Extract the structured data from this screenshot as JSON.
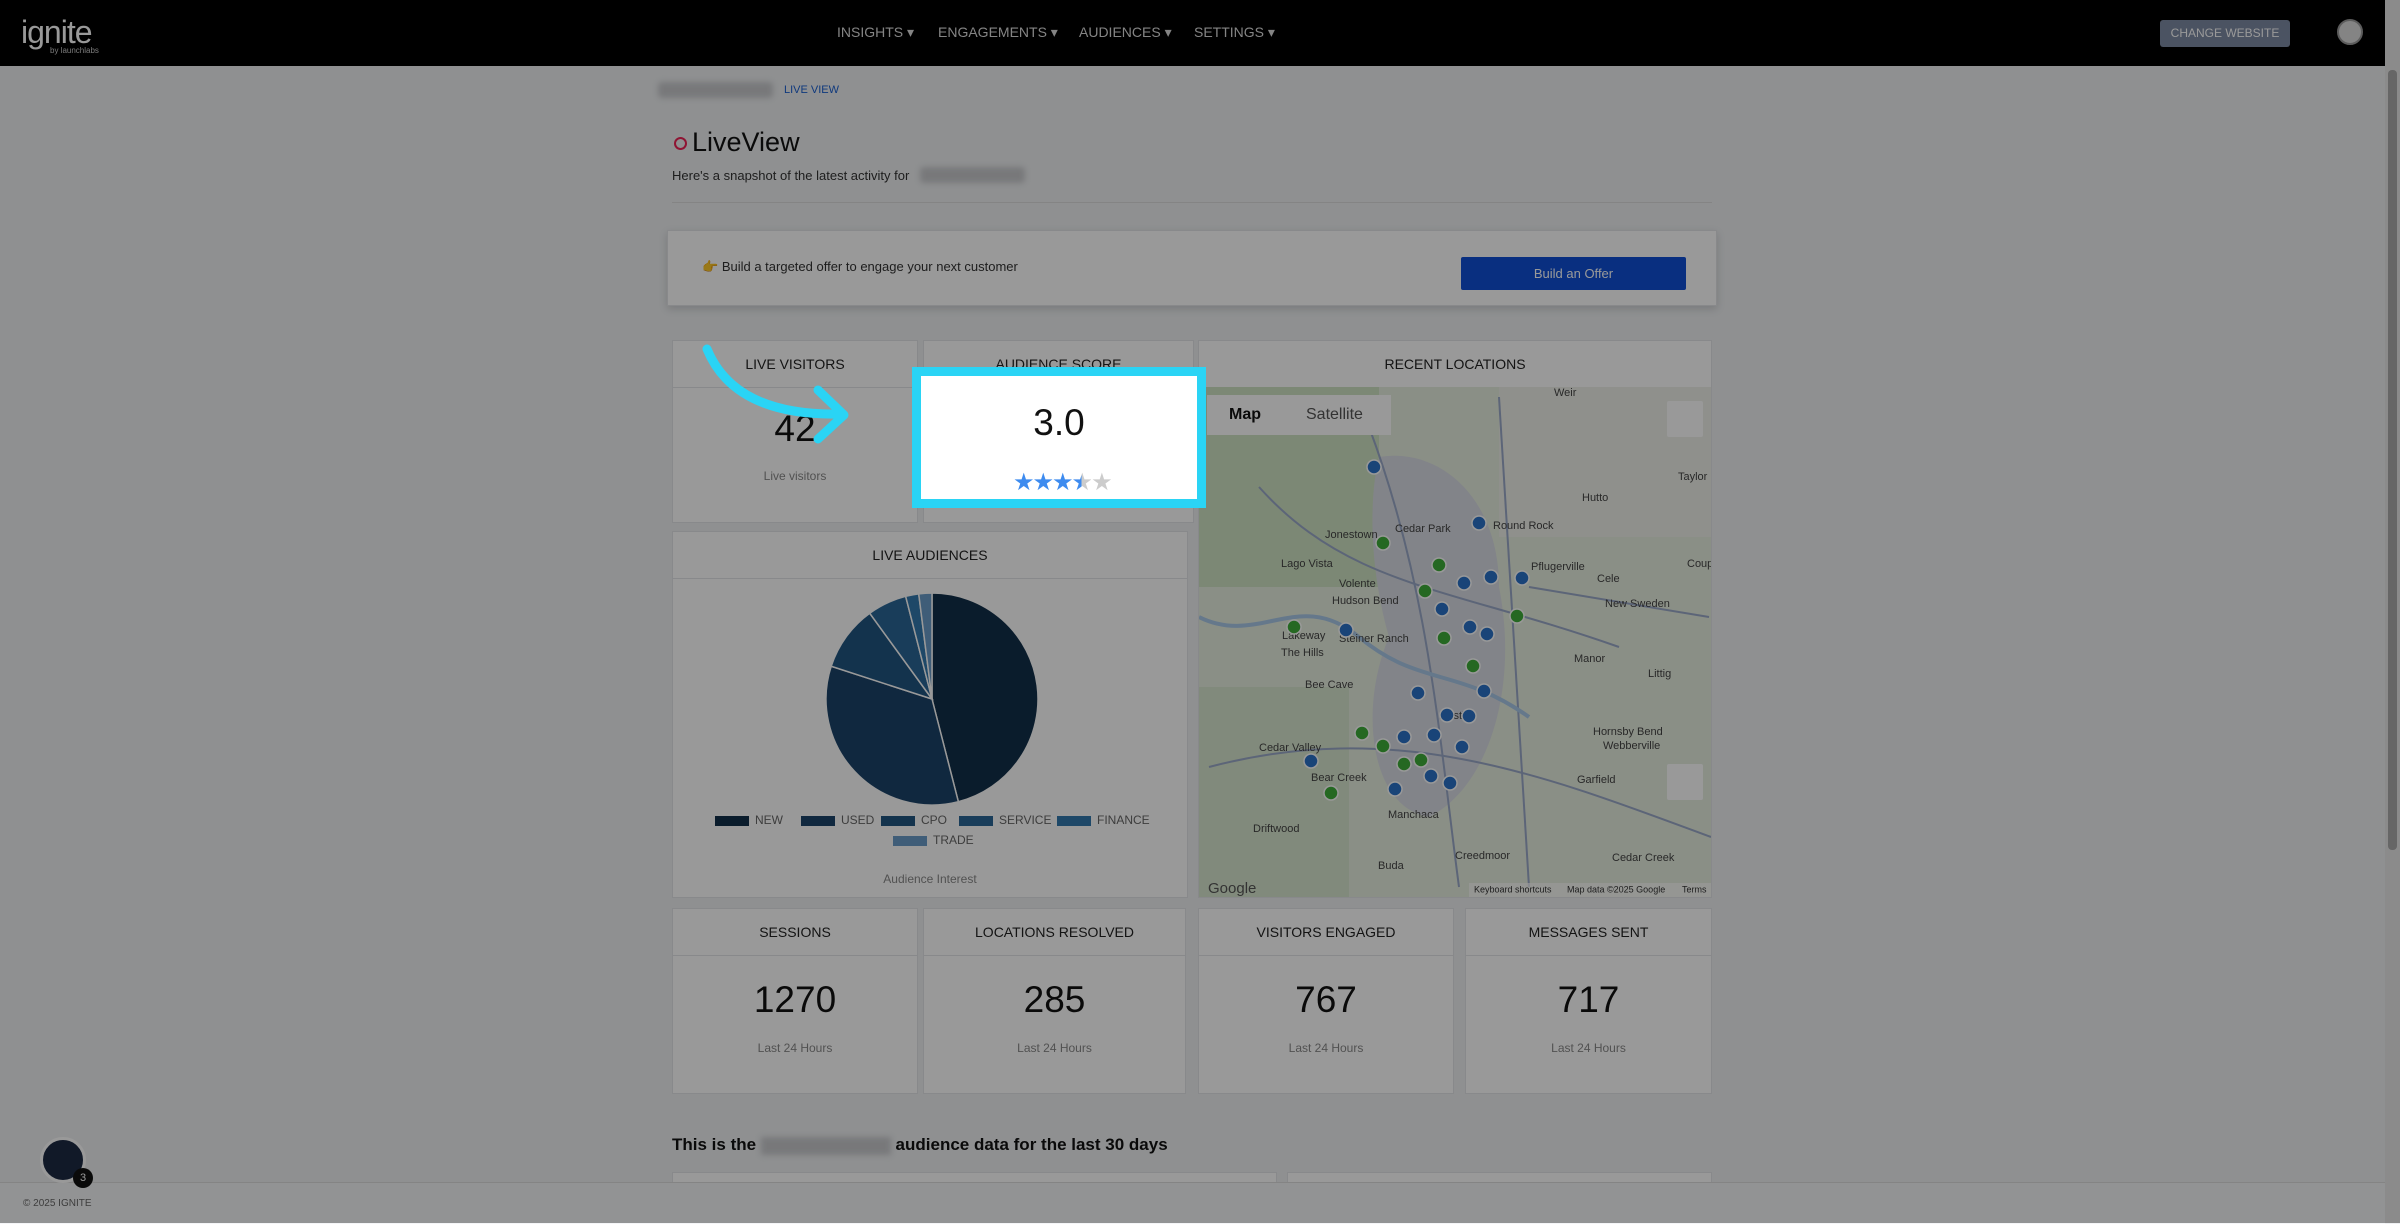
{
  "nav": {
    "logo": "ignite",
    "logo_sub": "by launchlabs",
    "items": [
      "INSIGHTS",
      "ENGAGEMENTS",
      "AUDIENCES",
      "SETTINGS"
    ],
    "button": "CHANGE WEBSITE"
  },
  "breadcrumb": "LIVE VIEW",
  "page": {
    "title": "LiveView",
    "subtitle": "Here's a snapshot of the latest activity for"
  },
  "offer": {
    "text": "Build a targeted offer to engage your next customer",
    "button": "Build an Offer"
  },
  "live_visitors": {
    "title": "LIVE VISITORS",
    "value": 42,
    "label": "Live visitors"
  },
  "audience_score": {
    "title": "AUDIENCE SCORE",
    "value": "3.0"
  },
  "recent_locations": {
    "title": "RECENT LOCATIONS",
    "tabs": [
      "Map",
      "Satellite"
    ],
    "places": [
      "Weir",
      "Jonestown",
      "Cedar Park",
      "Round Rock",
      "Hutto",
      "Taylor",
      "Pflugerville",
      "Cele",
      "Coupland",
      "Lago Vista",
      "Volente",
      "Hudson Bend",
      "New Sweden",
      "Lakeway",
      "Steiner Ranch",
      "The Hills",
      "Manor",
      "Littig",
      "Bee Cave",
      "Austin",
      "Hornsby Bend",
      "Webberville",
      "Cedar Valley",
      "Bear Creek",
      "Garfield",
      "Driftwood",
      "Manchaca",
      "Buda",
      "Creedmoor",
      "Cedar Creek"
    ],
    "attribution": [
      "Google",
      "Keyboard shortcuts",
      "Map data ©2025 Google",
      "Terms"
    ]
  },
  "chart_data": {
    "type": "pie",
    "title": "LIVE AUDIENCES",
    "categories": [
      "NEW",
      "USED",
      "CPO",
      "SERVICE",
      "FINANCE",
      "TRADE"
    ],
    "values": [
      46,
      34,
      10,
      6,
      2,
      2
    ],
    "colors": [
      "#122f4a",
      "#1b4469",
      "#215580",
      "#2a6797",
      "#3279ad",
      "#6a9cc9"
    ],
    "caption": "Audience Interest"
  },
  "stats": [
    {
      "title": "SESSIONS",
      "value": 1270,
      "label": "Last 24 Hours"
    },
    {
      "title": "LOCATIONS RESOLVED",
      "value": 285,
      "label": "Last 24 Hours"
    },
    {
      "title": "VISITORS ENGAGED",
      "value": 767,
      "label": "Last 24 Hours"
    },
    {
      "title": "MESSAGES SENT",
      "value": 717,
      "label": "Last 24 Hours"
    }
  ],
  "section_heading": {
    "prefix": "This is the",
    "suffix": "audience data for the last 30 days"
  },
  "footer": "© 2025 IGNITE",
  "help_badge": 3
}
